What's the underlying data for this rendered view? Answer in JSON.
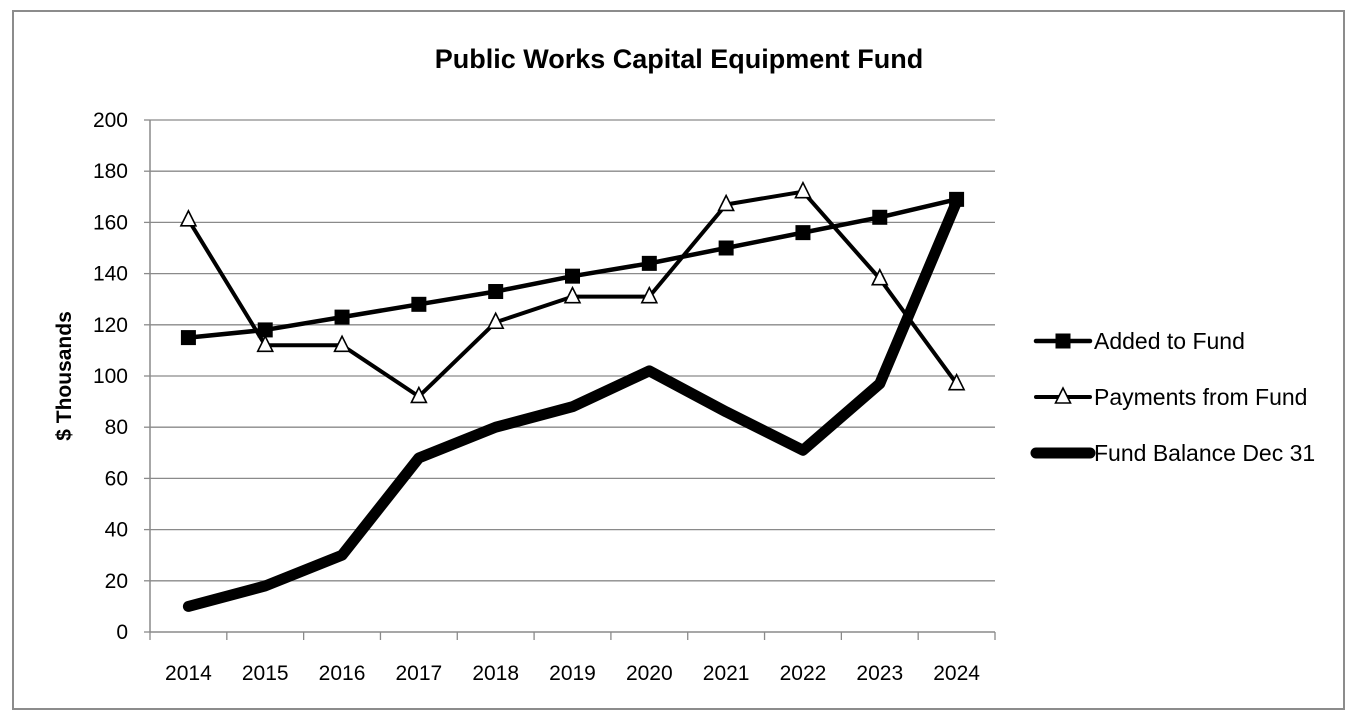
{
  "chart_data": {
    "type": "line",
    "title": "Public Works Capital Equipment Fund",
    "xlabel": "",
    "ylabel": "$ Thousands",
    "ylim": [
      0,
      200
    ],
    "ytick_step": 20,
    "y_ticks": [
      "0",
      "20",
      "40",
      "60",
      "80",
      "100",
      "120",
      "140",
      "160",
      "180",
      "200"
    ],
    "grid": "horizontal",
    "legend_position": "right",
    "categories": [
      "2014",
      "2015",
      "2016",
      "2017",
      "2018",
      "2019",
      "2020",
      "2021",
      "2022",
      "2023",
      "2024"
    ],
    "series": [
      {
        "name": "Added to Fund",
        "marker": "filled-square",
        "color": "#000000",
        "values": [
          115,
          118,
          123,
          128,
          133,
          139,
          144,
          150,
          156,
          162,
          169
        ]
      },
      {
        "name": "Payments from Fund",
        "marker": "open-triangle",
        "color": "#000000",
        "values": [
          161,
          112,
          112,
          92,
          121,
          131,
          131,
          167,
          172,
          138,
          97
        ]
      },
      {
        "name": "Fund Balance Dec 31",
        "marker": "none",
        "color": "#000000",
        "values": [
          10,
          18,
          30,
          68,
          80,
          88,
          102,
          86,
          71,
          97,
          168
        ]
      }
    ]
  }
}
